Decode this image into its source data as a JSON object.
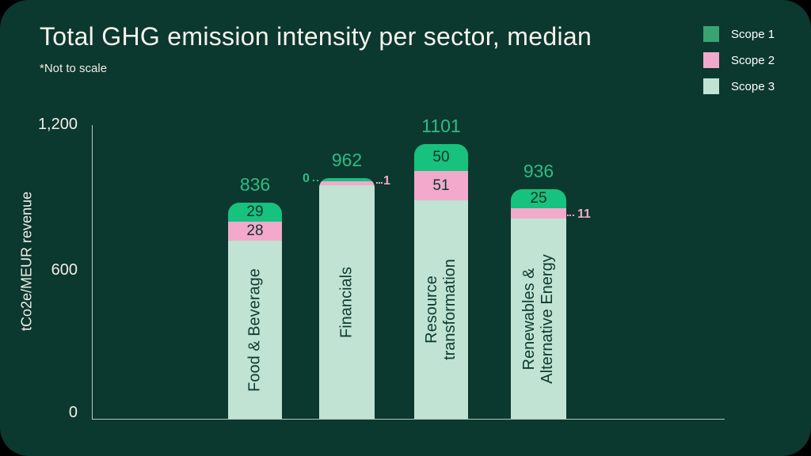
{
  "chart_data": {
    "type": "bar",
    "stacked": true,
    "title": "Total GHG emission intensity per sector, median",
    "note": "*Not to scale",
    "ylabel": "tCo2e/MEUR revenue",
    "yticks": [
      "0",
      "600",
      "1,200"
    ],
    "ylim": [
      0,
      1200
    ],
    "grid": false,
    "legend_position": "top-right",
    "categories": [
      "Food & Beverage",
      "Financials",
      "Resource transformation",
      "Renewables & Alternative Energy"
    ],
    "categories_display": [
      "Food & Beverage",
      "Financials",
      "Resource\ntransformation",
      "Renewables &\nAlternative Energy"
    ],
    "series": [
      {
        "name": "Scope 1",
        "values": [
          29,
          0,
          50,
          25
        ]
      },
      {
        "name": "Scope 2",
        "values": [
          28,
          1,
          51,
          11
        ]
      },
      {
        "name": "Scope 3",
        "values": [
          779,
          961,
          1000,
          900
        ]
      }
    ],
    "totals": [
      "836",
      "962",
      "1101",
      "936"
    ]
  },
  "colors": {
    "page_background": "#000000",
    "card_background": "#0b382f",
    "scope1_bar": "#17c17e",
    "scope2_bar": "#f2a9cb",
    "scope3_bar": "#c0e3d3",
    "scope1_swatch": "#38a471",
    "total_label": "#2ebc83",
    "text": "#f7f4ec",
    "axis_line": "#b9c8c1",
    "in_bar_text": "#0c332b"
  }
}
